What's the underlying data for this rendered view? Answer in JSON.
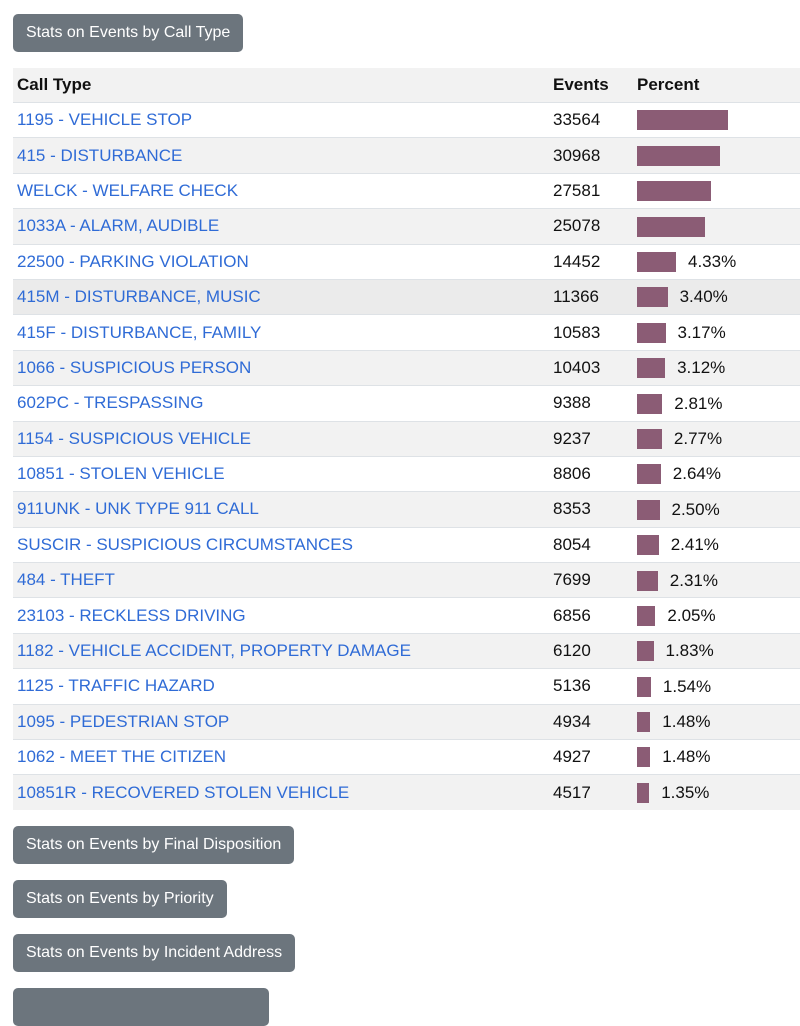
{
  "buttons": {
    "call_type": "Stats on Events by Call Type",
    "final_disposition": "Stats on Events by Final Disposition",
    "priority": "Stats on Events by Priority",
    "incident_address": "Stats on Events by Incident Address",
    "partial": ""
  },
  "colors": {
    "bar": "#8b5c75",
    "link": "#2f6bd6",
    "button": "#6c757d"
  },
  "table": {
    "headers": [
      "Call Type",
      "Events",
      "Percent"
    ],
    "rows": [
      {
        "call_type": "1195 - VEHICLE STOP",
        "events": "33564",
        "percent": 10.05
      },
      {
        "call_type": "415 - DISTURBANCE",
        "events": "30968",
        "percent": 9.27
      },
      {
        "call_type": "WELCK - WELFARE CHECK",
        "events": "27581",
        "percent": 8.26
      },
      {
        "call_type": "1033A - ALARM, AUDIBLE",
        "events": "25078",
        "percent": 7.51
      },
      {
        "call_type": "22500 - PARKING VIOLATION",
        "events": "14452",
        "percent": 4.33,
        "label": "4.33%"
      },
      {
        "call_type": "415M - DISTURBANCE, MUSIC",
        "events": "11366",
        "percent": 3.4,
        "label": "3.40%"
      },
      {
        "call_type": "415F - DISTURBANCE, FAMILY",
        "events": "10583",
        "percent": 3.17,
        "label": "3.17%"
      },
      {
        "call_type": "1066 - SUSPICIOUS PERSON",
        "events": "10403",
        "percent": 3.12,
        "label": "3.12%"
      },
      {
        "call_type": "602PC - TRESPASSING",
        "events": "9388",
        "percent": 2.81,
        "label": "2.81%"
      },
      {
        "call_type": "1154 - SUSPICIOUS VEHICLE",
        "events": "9237",
        "percent": 2.77,
        "label": "2.77%"
      },
      {
        "call_type": "10851 - STOLEN VEHICLE",
        "events": "8806",
        "percent": 2.64,
        "label": "2.64%"
      },
      {
        "call_type": "911UNK - UNK TYPE 911 CALL",
        "events": "8353",
        "percent": 2.5,
        "label": "2.50%"
      },
      {
        "call_type": "SUSCIR - SUSPICIOUS CIRCUMSTANCES",
        "events": "8054",
        "percent": 2.41,
        "label": "2.41%"
      },
      {
        "call_type": "484 - THEFT",
        "events": "7699",
        "percent": 2.31,
        "label": "2.31%"
      },
      {
        "call_type": "23103 - RECKLESS DRIVING",
        "events": "6856",
        "percent": 2.05,
        "label": "2.05%"
      },
      {
        "call_type": "1182 - VEHICLE ACCIDENT, PROPERTY DAMAGE",
        "events": "6120",
        "percent": 1.83,
        "label": "1.83%"
      },
      {
        "call_type": "1125 - TRAFFIC HAZARD",
        "events": "5136",
        "percent": 1.54,
        "label": "1.54%"
      },
      {
        "call_type": "1095 - PEDESTRIAN STOP",
        "events": "4934",
        "percent": 1.48,
        "label": "1.48%"
      },
      {
        "call_type": "1062 - MEET THE CITIZEN",
        "events": "4927",
        "percent": 1.48,
        "label": "1.48%"
      },
      {
        "call_type": "10851R - RECOVERED STOLEN VEHICLE",
        "events": "4517",
        "percent": 1.35,
        "label": "1.35%"
      }
    ]
  }
}
